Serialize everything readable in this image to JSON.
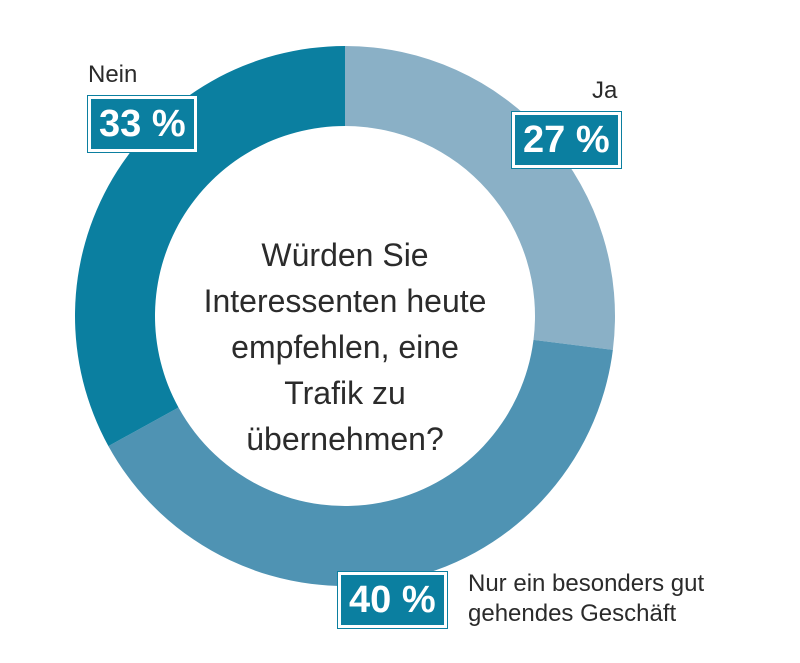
{
  "chart_data": {
    "type": "pie",
    "title": "Würden Sie Interessenten heute empfehlen, eine Trafik zu übernehmen?",
    "slices": [
      {
        "label": "Ja",
        "value": 27,
        "display": "27 %",
        "color": "#8ab0c6"
      },
      {
        "label": "Nur ein besonders gut gehendes Geschäft",
        "value": 40,
        "display": "40 %",
        "color": "#4f93b3"
      },
      {
        "label": "Nein",
        "value": 33,
        "display": "33 %",
        "color": "#0b7fa0"
      }
    ],
    "style": "donut",
    "start_angle_deg": 0
  },
  "labels": {
    "ja": "Ja",
    "nein": "Nein",
    "nur_line1": "Nur ein besonders gut",
    "nur_line2": "gehendes Geschäft"
  }
}
